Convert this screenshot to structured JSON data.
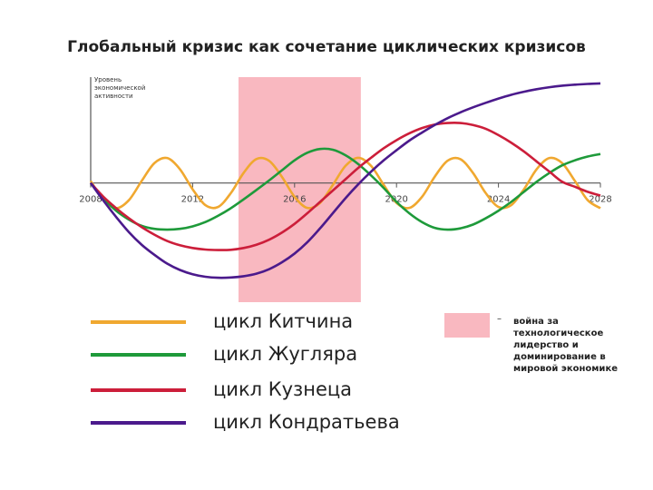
{
  "chart_data": {
    "type": "line",
    "title": "Глобальный кризис как сочетание циклических кризисов",
    "y_label": "Уровень экономической активности",
    "x": [
      2008,
      2008.5,
      2009,
      2009.5,
      2010,
      2010.5,
      2011,
      2011.5,
      2012,
      2012.5,
      2013,
      2013.5,
      2014,
      2014.5,
      2015,
      2015.5,
      2016,
      2016.5,
      2017,
      2017.5,
      2018,
      2018.5,
      2019,
      2019.5,
      2020,
      2020.5,
      2021,
      2021.5,
      2022,
      2022.5,
      2023,
      2023.5,
      2024,
      2024.5,
      2025,
      2025.5,
      2026,
      2026.5,
      2027,
      2027.5,
      2028
    ],
    "xlim": [
      2008,
      2028
    ],
    "xticks": [
      2008,
      2012,
      2016,
      2020,
      2024,
      2028
    ],
    "ylim": [
      -4.8,
      4.2
    ],
    "series": [
      {
        "name": "цикл Китчина",
        "color": "#f0a830",
        "values": [
          0.08,
          -0.68,
          -1,
          -0.68,
          0.08,
          0.79,
          0.99,
          0.55,
          -0.25,
          -0.88,
          -0.95,
          -0.4,
          0.4,
          0.95,
          0.88,
          0.25,
          -0.55,
          -0.99,
          -0.79,
          -0.08,
          0.68,
          1,
          0.68,
          -0.08,
          -0.79,
          -0.99,
          -0.55,
          0.25,
          0.88,
          0.95,
          0.4,
          -0.4,
          -0.95,
          -0.88,
          -0.25,
          0.55,
          0.99,
          0.79,
          0.08,
          -0.68,
          -1
        ]
      },
      {
        "name": "цикл Жугляра",
        "color": "#1e9a3a",
        "values": [
          0,
          -0.6,
          -1.1,
          -1.45,
          -1.7,
          -1.82,
          -1.85,
          -1.82,
          -1.72,
          -1.55,
          -1.3,
          -1,
          -0.65,
          -0.28,
          0.1,
          0.5,
          0.9,
          1.2,
          1.35,
          1.32,
          1.1,
          0.75,
          0.3,
          -0.2,
          -0.75,
          -1.2,
          -1.55,
          -1.78,
          -1.85,
          -1.8,
          -1.65,
          -1.4,
          -1.1,
          -0.75,
          -0.35,
          0.05,
          0.4,
          0.7,
          0.9,
          1.05,
          1.15
        ]
      },
      {
        "name": "цикл Кузнеца",
        "color": "#cc1e3a",
        "values": [
          0,
          -0.55,
          -1,
          -1.4,
          -1.75,
          -2.05,
          -2.3,
          -2.47,
          -2.58,
          -2.64,
          -2.66,
          -2.65,
          -2.58,
          -2.45,
          -2.25,
          -1.97,
          -1.62,
          -1.2,
          -0.75,
          -0.3,
          0.15,
          0.6,
          1,
          1.38,
          1.7,
          1.97,
          2.18,
          2.32,
          2.38,
          2.38,
          2.3,
          2.15,
          1.9,
          1.6,
          1.25,
          0.85,
          0.45,
          0.05,
          -0.15,
          -0.35,
          -0.5
        ]
      },
      {
        "name": "цикл Кондратьева",
        "color": "#4b1a8c",
        "values": [
          0,
          -0.7,
          -1.35,
          -1.95,
          -2.45,
          -2.85,
          -3.2,
          -3.45,
          -3.62,
          -3.72,
          -3.76,
          -3.75,
          -3.7,
          -3.6,
          -3.42,
          -3.15,
          -2.8,
          -2.35,
          -1.8,
          -1.2,
          -0.6,
          -0.05,
          0.45,
          0.9,
          1.3,
          1.68,
          2,
          2.3,
          2.57,
          2.8,
          3,
          3.18,
          3.35,
          3.5,
          3.62,
          3.72,
          3.8,
          3.86,
          3.9,
          3.93,
          3.95
        ]
      }
    ],
    "shade": {
      "x0": 2013.8,
      "x1": 2018.6,
      "color": "#f9b8c0",
      "label_prefix": "–",
      "label": "война за технологическое лидерство и доминирование в мировой экономике"
    }
  }
}
